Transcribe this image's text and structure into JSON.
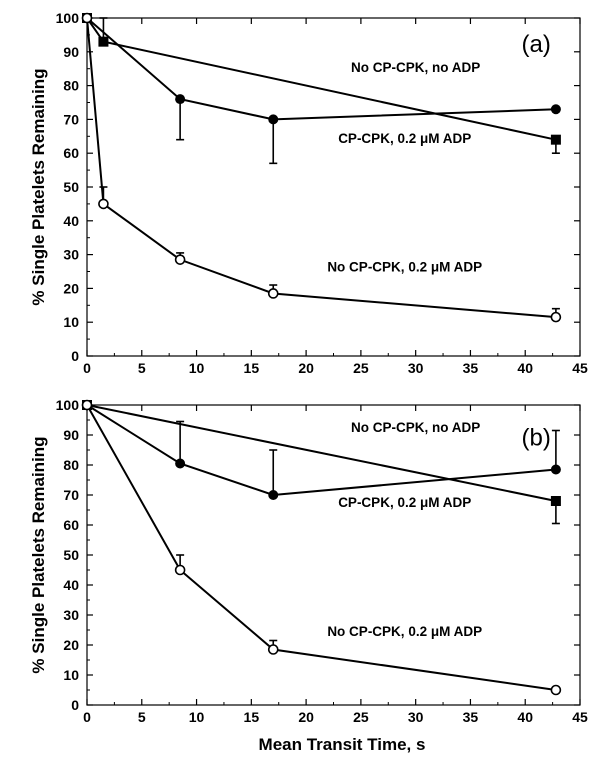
{
  "x_axis_title": "Mean Transit Time, s",
  "chart_data": [
    {
      "type": "line",
      "panel_label": "(a)",
      "ylabel": "% Single Platelets Remaining",
      "xlim": [
        0,
        45
      ],
      "ylim": [
        0,
        100
      ],
      "xticks": [
        0,
        5,
        10,
        15,
        20,
        25,
        30,
        35,
        40,
        45
      ],
      "yticks": [
        0,
        10,
        20,
        30,
        40,
        50,
        60,
        70,
        80,
        90,
        100
      ],
      "grid": false,
      "series": [
        {
          "name": "No CP-CPK, no ADP",
          "marker": "square",
          "points": [
            {
              "x": 0,
              "y": 100
            },
            {
              "x": 1.5,
              "y": 93,
              "err_up": 7
            },
            {
              "x": 42.8,
              "y": 64,
              "err_down": 4
            }
          ]
        },
        {
          "name": "CP-CPK, 0.2 μM ADP",
          "marker": "filled-circle",
          "points": [
            {
              "x": 0,
              "y": 100
            },
            {
              "x": 8.5,
              "y": 76,
              "err_down": 12
            },
            {
              "x": 17,
              "y": 70,
              "err_down": 13
            },
            {
              "x": 42.8,
              "y": 73
            }
          ]
        },
        {
          "name": "No CP-CPK, 0.2 μM ADP",
          "marker": "open-circle",
          "points": [
            {
              "x": 0,
              "y": 100
            },
            {
              "x": 1.5,
              "y": 45,
              "err_up": 5
            },
            {
              "x": 8.5,
              "y": 28.5,
              "err_up": 2
            },
            {
              "x": 17,
              "y": 18.5,
              "err_up": 2.5
            },
            {
              "x": 42.8,
              "y": 11.5,
              "err_up": 2.5
            }
          ]
        }
      ],
      "annotations": [
        {
          "text": "No CP-CPK, no ADP",
          "x": 30,
          "y": 84
        },
        {
          "text": "CP-CPK, 0.2 μM ADP",
          "x": 29,
          "y": 63
        },
        {
          "text": "No CP-CPK, 0.2 μM ADP",
          "x": 29,
          "y": 25
        }
      ]
    },
    {
      "type": "line",
      "panel_label": "(b)",
      "ylabel": "% Single Platelets Remaining",
      "xlabel": "Mean Transit Time, s",
      "xlim": [
        0,
        45
      ],
      "ylim": [
        0,
        100
      ],
      "xticks": [
        0,
        5,
        10,
        15,
        20,
        25,
        30,
        35,
        40,
        45
      ],
      "yticks": [
        0,
        10,
        20,
        30,
        40,
        50,
        60,
        70,
        80,
        90,
        100
      ],
      "grid": false,
      "series": [
        {
          "name": "No CP-CPK, no ADP",
          "marker": "square",
          "points": [
            {
              "x": 0,
              "y": 100
            },
            {
              "x": 42.8,
              "y": 68,
              "err_down": 7.5
            }
          ]
        },
        {
          "name": "CP-CPK, 0.2 μM ADP",
          "marker": "filled-circle",
          "points": [
            {
              "x": 0,
              "y": 100
            },
            {
              "x": 8.5,
              "y": 80.5,
              "err_up": 14
            },
            {
              "x": 17,
              "y": 70,
              "err_up": 15
            },
            {
              "x": 42.8,
              "y": 78.5,
              "err_up": 13
            }
          ]
        },
        {
          "name": "No CP-CPK, 0.2 μM ADP",
          "marker": "open-circle",
          "points": [
            {
              "x": 0,
              "y": 100
            },
            {
              "x": 8.5,
              "y": 45,
              "err_up": 5
            },
            {
              "x": 17,
              "y": 18.5,
              "err_up": 3
            },
            {
              "x": 42.8,
              "y": 5
            }
          ]
        }
      ],
      "annotations": [
        {
          "text": "No CP-CPK, no ADP",
          "x": 30,
          "y": 91
        },
        {
          "text": "CP-CPK, 0.2 μM ADP",
          "x": 29,
          "y": 66
        },
        {
          "text": "No CP-CPK, 0.2 μM ADP",
          "x": 29,
          "y": 23
        }
      ]
    }
  ]
}
